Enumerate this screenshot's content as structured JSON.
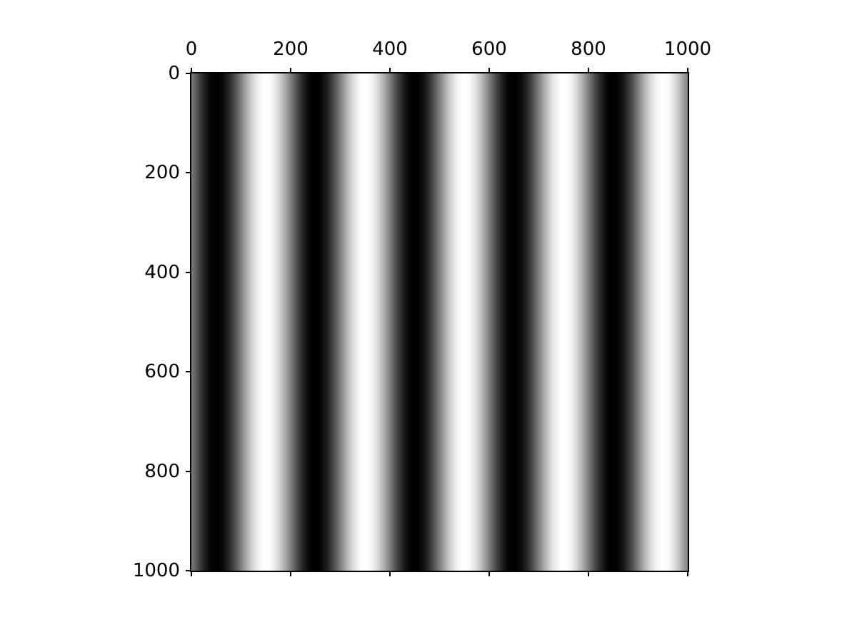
{
  "figure": {
    "background_color": "#ffffff",
    "axes_color": "#000000",
    "tick_label_color": "#000000",
    "kind": "matplotlib matshow of a grayscale image"
  },
  "chart_data": {
    "type": "heatmap",
    "title": "",
    "xlabel": "",
    "ylabel": "",
    "colormap": "gray",
    "grid": false,
    "legend": false,
    "x_range": [
      0,
      1000
    ],
    "y_range": [
      0,
      1000
    ],
    "y_axis_direction": "downward",
    "tick_label_positions": {
      "x": "top",
      "y": "left"
    },
    "x_ticks": [
      "0",
      "200",
      "400",
      "600",
      "800",
      "1000"
    ],
    "y_ticks": [
      "0",
      "200",
      "400",
      "600",
      "800",
      "1000"
    ],
    "x_tick_values": [
      0,
      200,
      400,
      600,
      800,
      1000
    ],
    "y_tick_values": [
      0,
      200,
      400,
      600,
      800,
      1000
    ],
    "image": {
      "description": "vertical sinusoidal grating, constant along y, 5 full cycles across x",
      "orientation": "vertical-stripes",
      "cycles": 5,
      "period_x": 200,
      "dark_band_centers_x": [
        50,
        250,
        450,
        650,
        850
      ],
      "light_band_centers_x": [
        150,
        350,
        550,
        750,
        950
      ],
      "min_color": "#000000",
      "max_color": "#ffffff",
      "wave": {
        "formula": "brightness(x) = 0.5 + 0.5*sin(2*pi*x/200 + pi)",
        "offset": 0.5,
        "amplitude": 0.5,
        "period_x": 200,
        "phase_rad": 3.141592653589793
      }
    }
  }
}
